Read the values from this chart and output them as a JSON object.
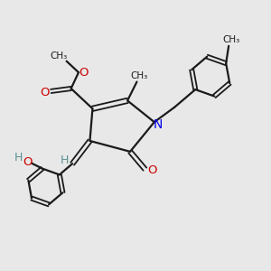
{
  "bg_color": "#e8e8e8",
  "bond_color": "#1a1a1a",
  "n_color": "#0000ee",
  "o_color": "#cc0000",
  "h_color": "#5a9090",
  "figsize": [
    3.0,
    3.0
  ],
  "dpi": 100,
  "xlim": [
    0,
    10
  ],
  "ylim": [
    0,
    10
  ]
}
